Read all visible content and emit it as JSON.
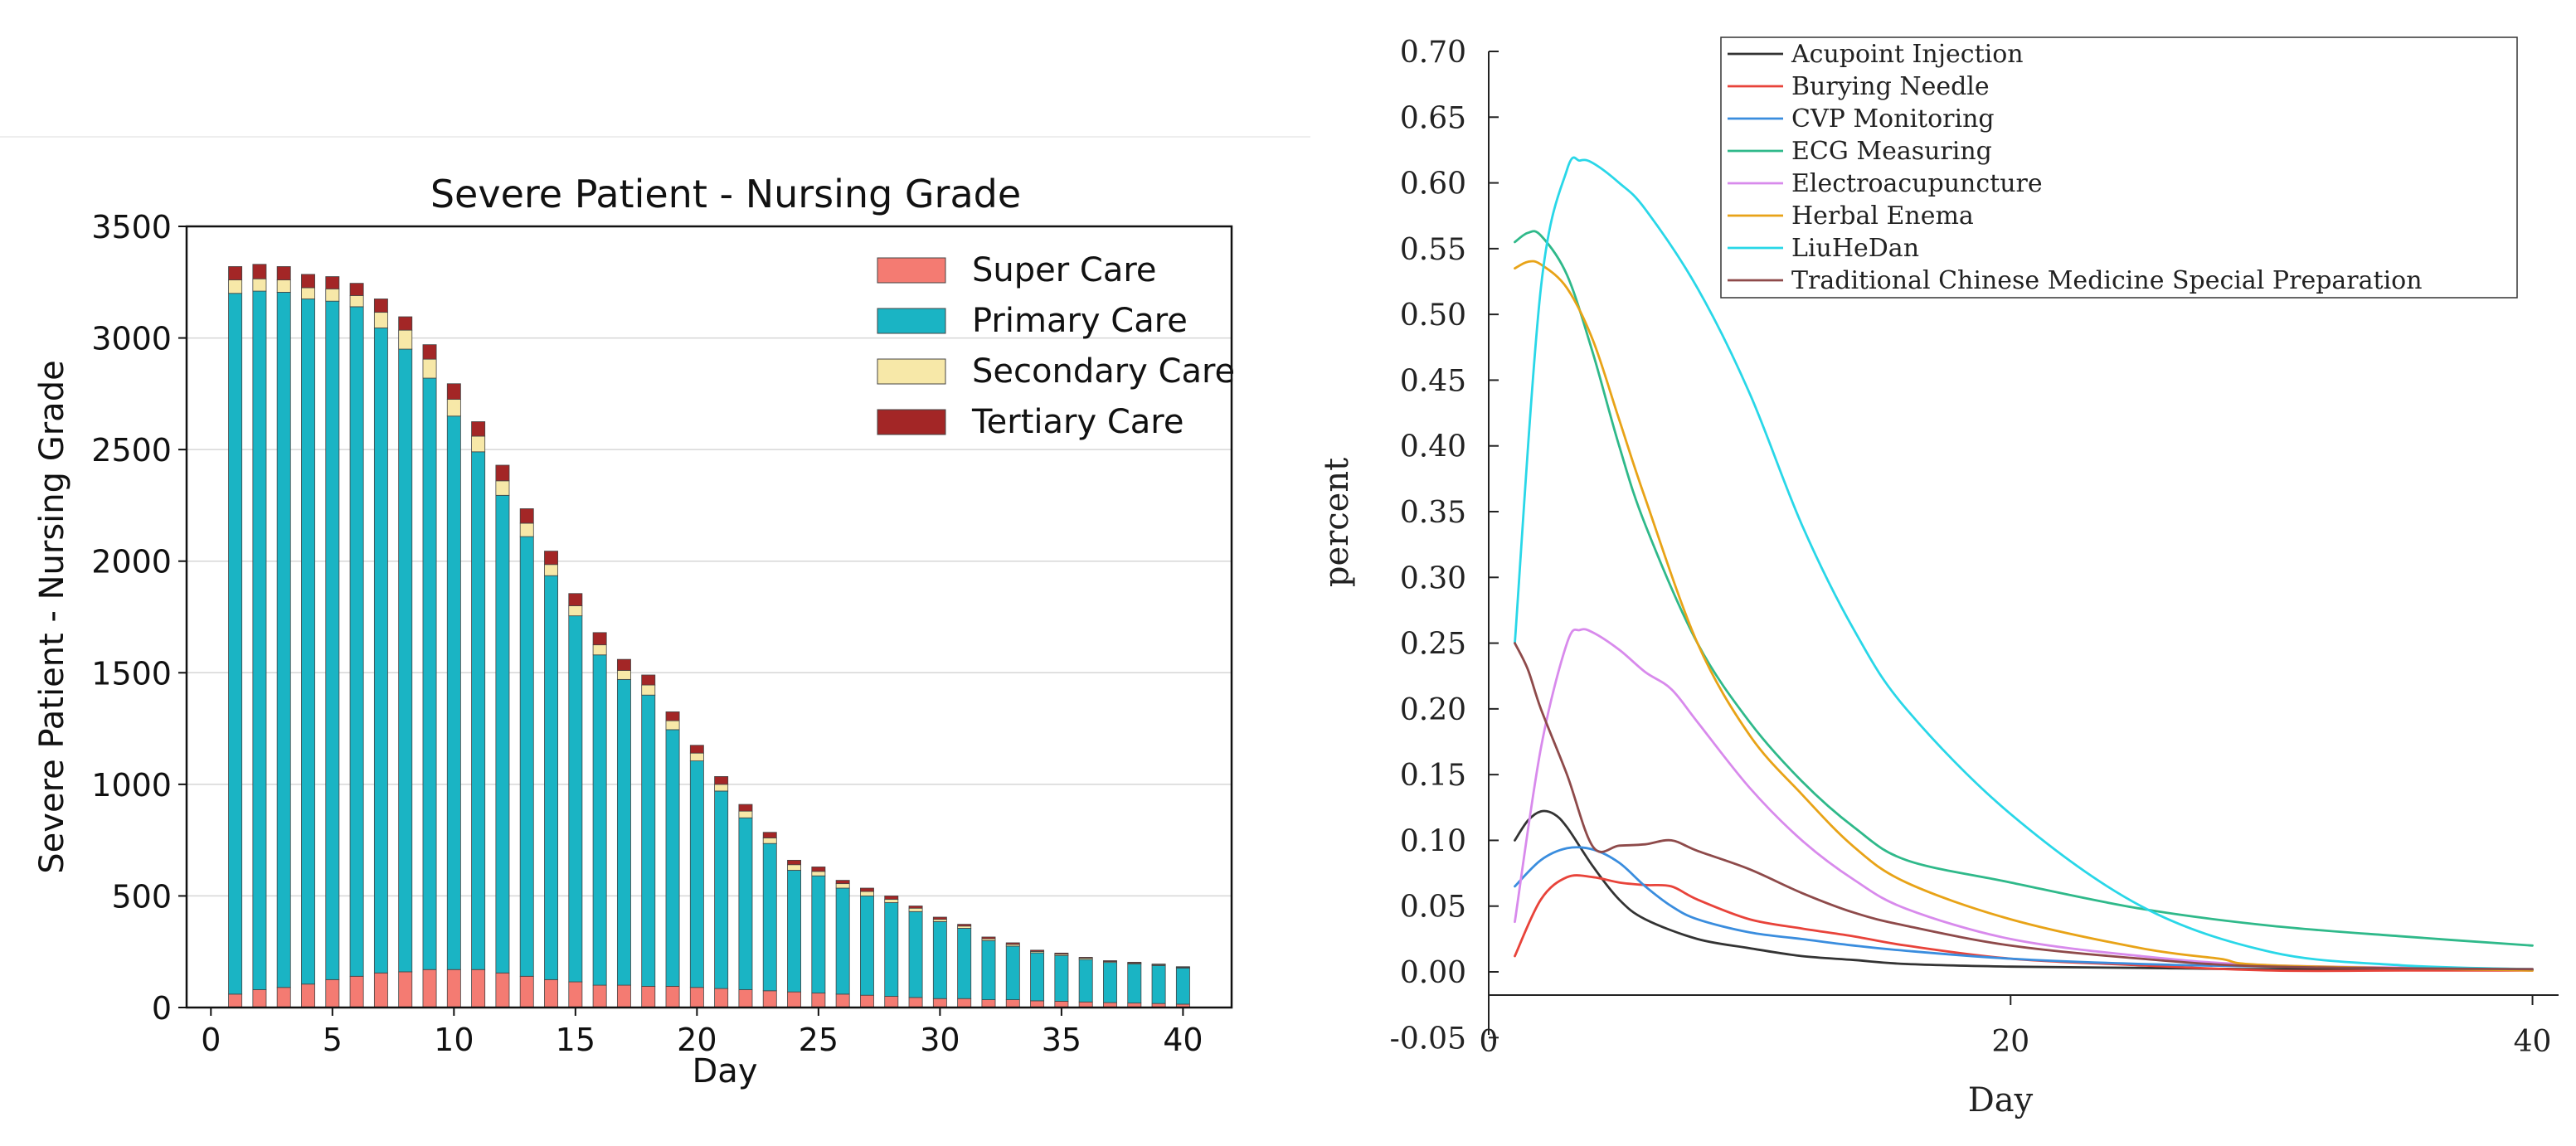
{
  "chart_data": [
    {
      "type": "bar",
      "stacked": true,
      "title": "Severe Patient - Nursing Grade",
      "xlabel": "Day",
      "ylabel": "Severe Patient - Nursing Grade",
      "xlim": [
        -1,
        42
      ],
      "ylim": [
        0,
        3500
      ],
      "xticks": [
        0,
        5,
        10,
        15,
        20,
        25,
        30,
        35,
        40
      ],
      "yticks": [
        0,
        500,
        1000,
        1500,
        2000,
        2500,
        3000,
        3500
      ],
      "grid": "horizontal",
      "legend_position": "top-right",
      "categories": [
        1,
        2,
        3,
        4,
        5,
        6,
        7,
        8,
        9,
        10,
        11,
        12,
        13,
        14,
        15,
        16,
        17,
        18,
        19,
        20,
        21,
        22,
        23,
        24,
        25,
        26,
        27,
        28,
        29,
        30,
        31,
        32,
        33,
        34,
        35,
        36,
        37,
        38,
        39,
        40
      ],
      "series": [
        {
          "name": "Super Care",
          "color": "#F47B72",
          "values": [
            60,
            80,
            90,
            105,
            125,
            140,
            155,
            160,
            170,
            170,
            170,
            155,
            140,
            125,
            115,
            100,
            100,
            95,
            95,
            90,
            85,
            80,
            75,
            70,
            65,
            60,
            55,
            50,
            45,
            40,
            40,
            35,
            35,
            30,
            28,
            25,
            22,
            20,
            18,
            15
          ]
        },
        {
          "name": "Primary Care",
          "color": "#1AB4C4",
          "values": [
            3140,
            3130,
            3115,
            3070,
            3040,
            3000,
            2890,
            2790,
            2650,
            2480,
            2320,
            2140,
            1970,
            1810,
            1640,
            1480,
            1370,
            1305,
            1150,
            1015,
            885,
            770,
            660,
            545,
            525,
            475,
            445,
            420,
            385,
            345,
            315,
            265,
            240,
            215,
            205,
            190,
            180,
            175,
            170,
            162
          ]
        },
        {
          "name": "Secondary Care",
          "color": "#F7E8A8",
          "values": [
            60,
            55,
            55,
            50,
            55,
            50,
            70,
            85,
            85,
            75,
            70,
            65,
            60,
            50,
            45,
            45,
            40,
            45,
            40,
            35,
            30,
            30,
            25,
            25,
            20,
            20,
            20,
            15,
            15,
            10,
            10,
            8,
            8,
            6,
            6,
            6,
            4,
            4,
            4,
            3
          ]
        },
        {
          "name": "Tertiary Care",
          "color": "#A32626",
          "values": [
            60,
            65,
            60,
            60,
            55,
            55,
            60,
            60,
            65,
            70,
            65,
            70,
            65,
            60,
            55,
            55,
            50,
            45,
            40,
            35,
            35,
            30,
            25,
            20,
            20,
            15,
            15,
            15,
            10,
            10,
            8,
            8,
            7,
            6,
            5,
            4,
            4,
            4,
            3,
            3
          ]
        }
      ]
    },
    {
      "type": "line",
      "title": "",
      "xlabel": "Day",
      "ylabel": "percent",
      "xlim": [
        0,
        41
      ],
      "ylim": [
        -0.05,
        0.7
      ],
      "xticks": [
        0,
        20,
        40
      ],
      "yticks": [
        "-0.05",
        "0.00",
        "0.05",
        "0.10",
        "0.15",
        "0.20",
        "0.25",
        "0.30",
        "0.35",
        "0.40",
        "0.45",
        "0.50",
        "0.55",
        "0.60",
        "0.65",
        "0.70"
      ],
      "legend_position": "top-right",
      "series": [
        {
          "name": "Acupoint Injection",
          "color": "#333333",
          "x": [
            1,
            1.5,
            2,
            2.5,
            3,
            4,
            5,
            6,
            8,
            10,
            12,
            14,
            16,
            20,
            25,
            30,
            40
          ],
          "y": [
            0.1,
            0.115,
            0.122,
            0.12,
            0.11,
            0.08,
            0.055,
            0.04,
            0.025,
            0.018,
            0.012,
            0.009,
            0.006,
            0.004,
            0.003,
            0.002,
            0.002
          ]
        },
        {
          "name": "Burying Needle",
          "color": "#E8433A",
          "x": [
            1,
            2,
            3,
            4,
            5,
            6,
            7,
            8,
            10,
            12,
            14,
            16,
            20,
            25,
            30,
            35,
            40
          ],
          "y": [
            0.012,
            0.055,
            0.072,
            0.072,
            0.068,
            0.066,
            0.065,
            0.055,
            0.04,
            0.033,
            0.027,
            0.02,
            0.01,
            0.005,
            0.001,
            0.001,
            0.001
          ]
        },
        {
          "name": "CVP Monitoring",
          "color": "#3A8DDE",
          "x": [
            1,
            2,
            3,
            4,
            5,
            6,
            7,
            8,
            10,
            12,
            14,
            16,
            20,
            25,
            30,
            40
          ],
          "y": [
            0.065,
            0.085,
            0.094,
            0.093,
            0.083,
            0.065,
            0.05,
            0.04,
            0.03,
            0.025,
            0.02,
            0.016,
            0.01,
            0.006,
            0.004,
            0.002
          ]
        },
        {
          "name": "ECG Measuring",
          "color": "#2FB98A",
          "x": [
            1,
            1.5,
            2,
            3,
            4,
            5,
            6,
            8,
            10,
            12,
            14,
            16,
            20,
            25,
            30,
            35,
            40
          ],
          "y": [
            0.555,
            0.562,
            0.56,
            0.53,
            0.47,
            0.4,
            0.34,
            0.25,
            0.19,
            0.145,
            0.11,
            0.085,
            0.068,
            0.048,
            0.035,
            0.027,
            0.02
          ]
        },
        {
          "name": "Electroacupuncture",
          "color": "#D88AEC",
          "x": [
            1,
            2,
            3,
            3.5,
            4,
            5,
            6,
            7,
            8,
            10,
            12,
            14,
            16,
            20,
            25,
            30,
            40
          ],
          "y": [
            0.038,
            0.17,
            0.25,
            0.26,
            0.258,
            0.245,
            0.228,
            0.215,
            0.19,
            0.14,
            0.1,
            0.07,
            0.048,
            0.025,
            0.012,
            0.005,
            0.002
          ]
        },
        {
          "name": "Herbal Enema",
          "color": "#E8A317",
          "x": [
            1,
            1.5,
            2,
            3,
            4,
            5,
            6,
            8,
            10,
            12,
            14,
            16,
            20,
            25,
            28,
            30,
            40
          ],
          "y": [
            0.535,
            0.54,
            0.538,
            0.52,
            0.48,
            0.42,
            0.36,
            0.25,
            0.18,
            0.135,
            0.095,
            0.068,
            0.04,
            0.018,
            0.01,
            0.005,
            0.001
          ]
        },
        {
          "name": "LiuHeDan",
          "color": "#29D7E8",
          "x": [
            1,
            2,
            3,
            3.5,
            4,
            5,
            6,
            8,
            10,
            12,
            14,
            16,
            20,
            25,
            30,
            35,
            40
          ],
          "y": [
            0.25,
            0.52,
            0.61,
            0.617,
            0.615,
            0.6,
            0.58,
            0.52,
            0.44,
            0.34,
            0.26,
            0.2,
            0.12,
            0.05,
            0.015,
            0.005,
            0.002
          ]
        },
        {
          "name": "Traditional Chinese Medicine Special Preparation",
          "color": "#8E4A4A",
          "x": [
            1,
            1.5,
            2,
            3,
            4,
            5,
            6,
            7,
            8,
            10,
            12,
            14,
            16,
            20,
            25,
            30,
            40
          ],
          "y": [
            0.25,
            0.23,
            0.2,
            0.15,
            0.095,
            0.096,
            0.097,
            0.1,
            0.092,
            0.078,
            0.06,
            0.045,
            0.035,
            0.02,
            0.01,
            0.004,
            0.002
          ]
        }
      ]
    }
  ]
}
